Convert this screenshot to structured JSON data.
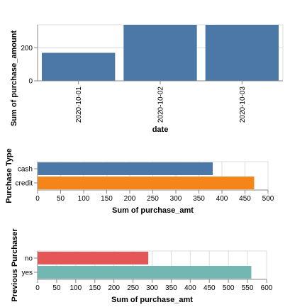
{
  "chart_data": [
    {
      "type": "bar",
      "orientation": "vertical",
      "categories": [
        "2020-10-01",
        "2020-10-02",
        "2020-10-03"
      ],
      "values": [
        170,
        340,
        340
      ],
      "xlabel": "date",
      "ylabel": "Sum of purchase_amount",
      "ylim": [
        0,
        340
      ],
      "yticks": [
        0,
        200
      ],
      "grid": true,
      "colors": [
        "#4c78a8",
        "#4c78a8",
        "#4c78a8"
      ]
    },
    {
      "type": "bar",
      "orientation": "horizontal",
      "categories": [
        "cash",
        "credit"
      ],
      "values": [
        380,
        470
      ],
      "xlabel": "Sum of purchase_amt",
      "ylabel": "Purchase Type",
      "xlim": [
        0,
        500
      ],
      "xticks": [
        0,
        50,
        100,
        150,
        200,
        250,
        300,
        350,
        400,
        450,
        500
      ],
      "grid": true,
      "colors": [
        "#4c78a8",
        "#f58518"
      ]
    },
    {
      "type": "bar",
      "orientation": "horizontal",
      "categories": [
        "no",
        "yes"
      ],
      "values": [
        290,
        560
      ],
      "xlabel": "Sum of purchase_amt",
      "ylabel": "Previous Purchaser",
      "xlim": [
        0,
        600
      ],
      "xticks": [
        0,
        50,
        100,
        150,
        200,
        250,
        300,
        350,
        400,
        450,
        500,
        550,
        600
      ],
      "grid": true,
      "colors": [
        "#e45756",
        "#72b7b2"
      ]
    }
  ]
}
